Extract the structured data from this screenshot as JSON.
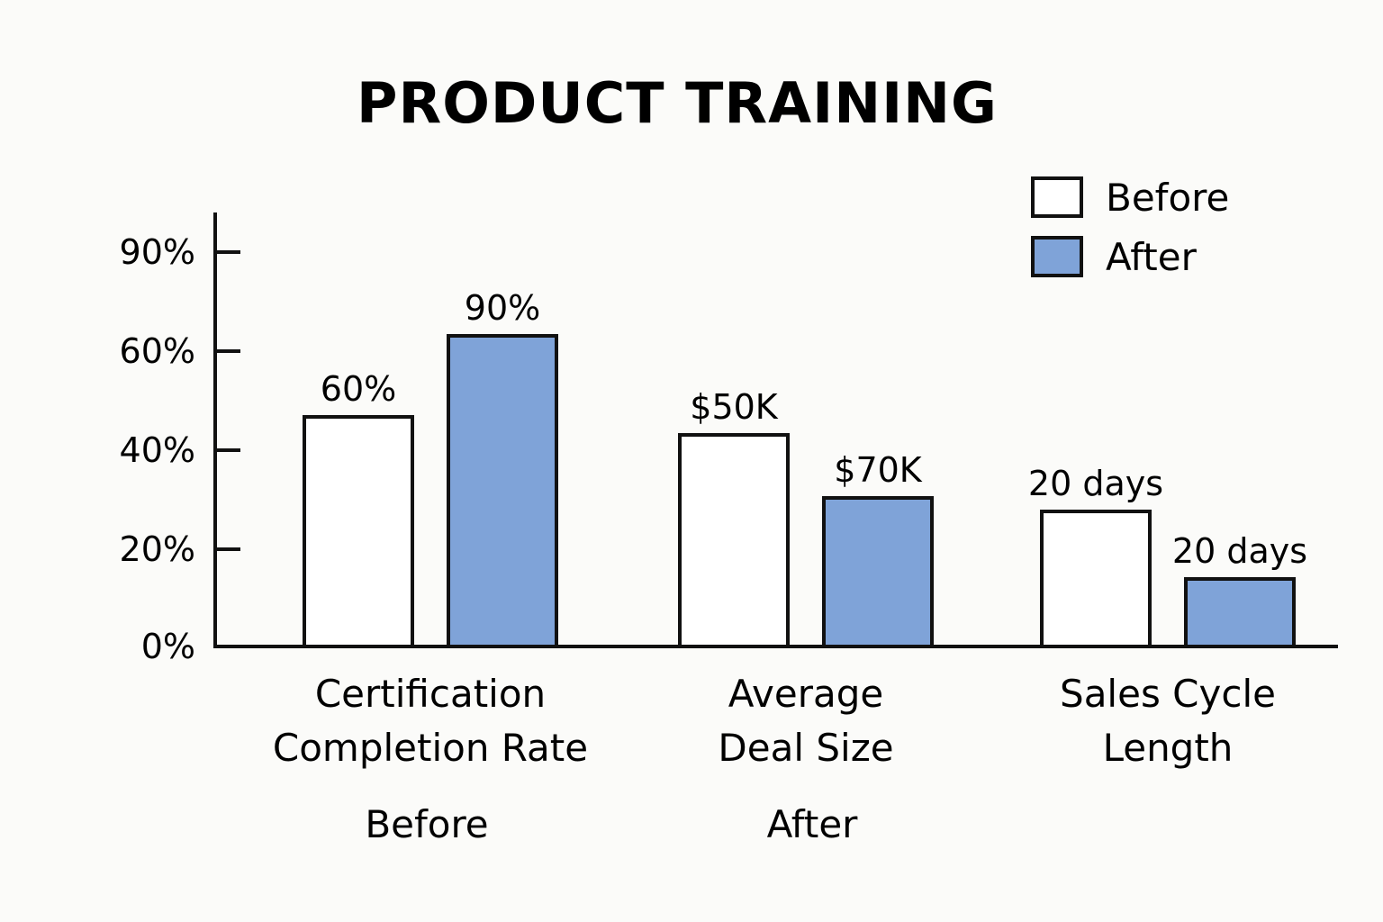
{
  "chart_data": {
    "type": "bar",
    "title": "PRODUCT TRAINING",
    "xlabel": "",
    "ylabel": "",
    "y_ticks": [
      "0%",
      "20%",
      "40%",
      "60%",
      "90%"
    ],
    "categories": [
      [
        "Certification",
        "Completion Rate"
      ],
      [
        "Average",
        "Deal Size"
      ],
      [
        "Sales Cycle",
        "Length"
      ]
    ],
    "series": [
      {
        "name": "Before",
        "color": "#ffffff",
        "values": [
          51,
          47,
          30
        ],
        "labels": [
          "60%",
          "$50K",
          "20 days"
        ]
      },
      {
        "name": "After",
        "color": "#7fa3d8",
        "values": [
          69,
          33,
          15
        ],
        "labels": [
          "90%",
          "$70K",
          "20 days"
        ]
      }
    ],
    "ylim": [
      0,
      100
    ],
    "grid": false,
    "legend_position": "top-right",
    "bottom_labels": [
      "Before",
      "After"
    ]
  }
}
